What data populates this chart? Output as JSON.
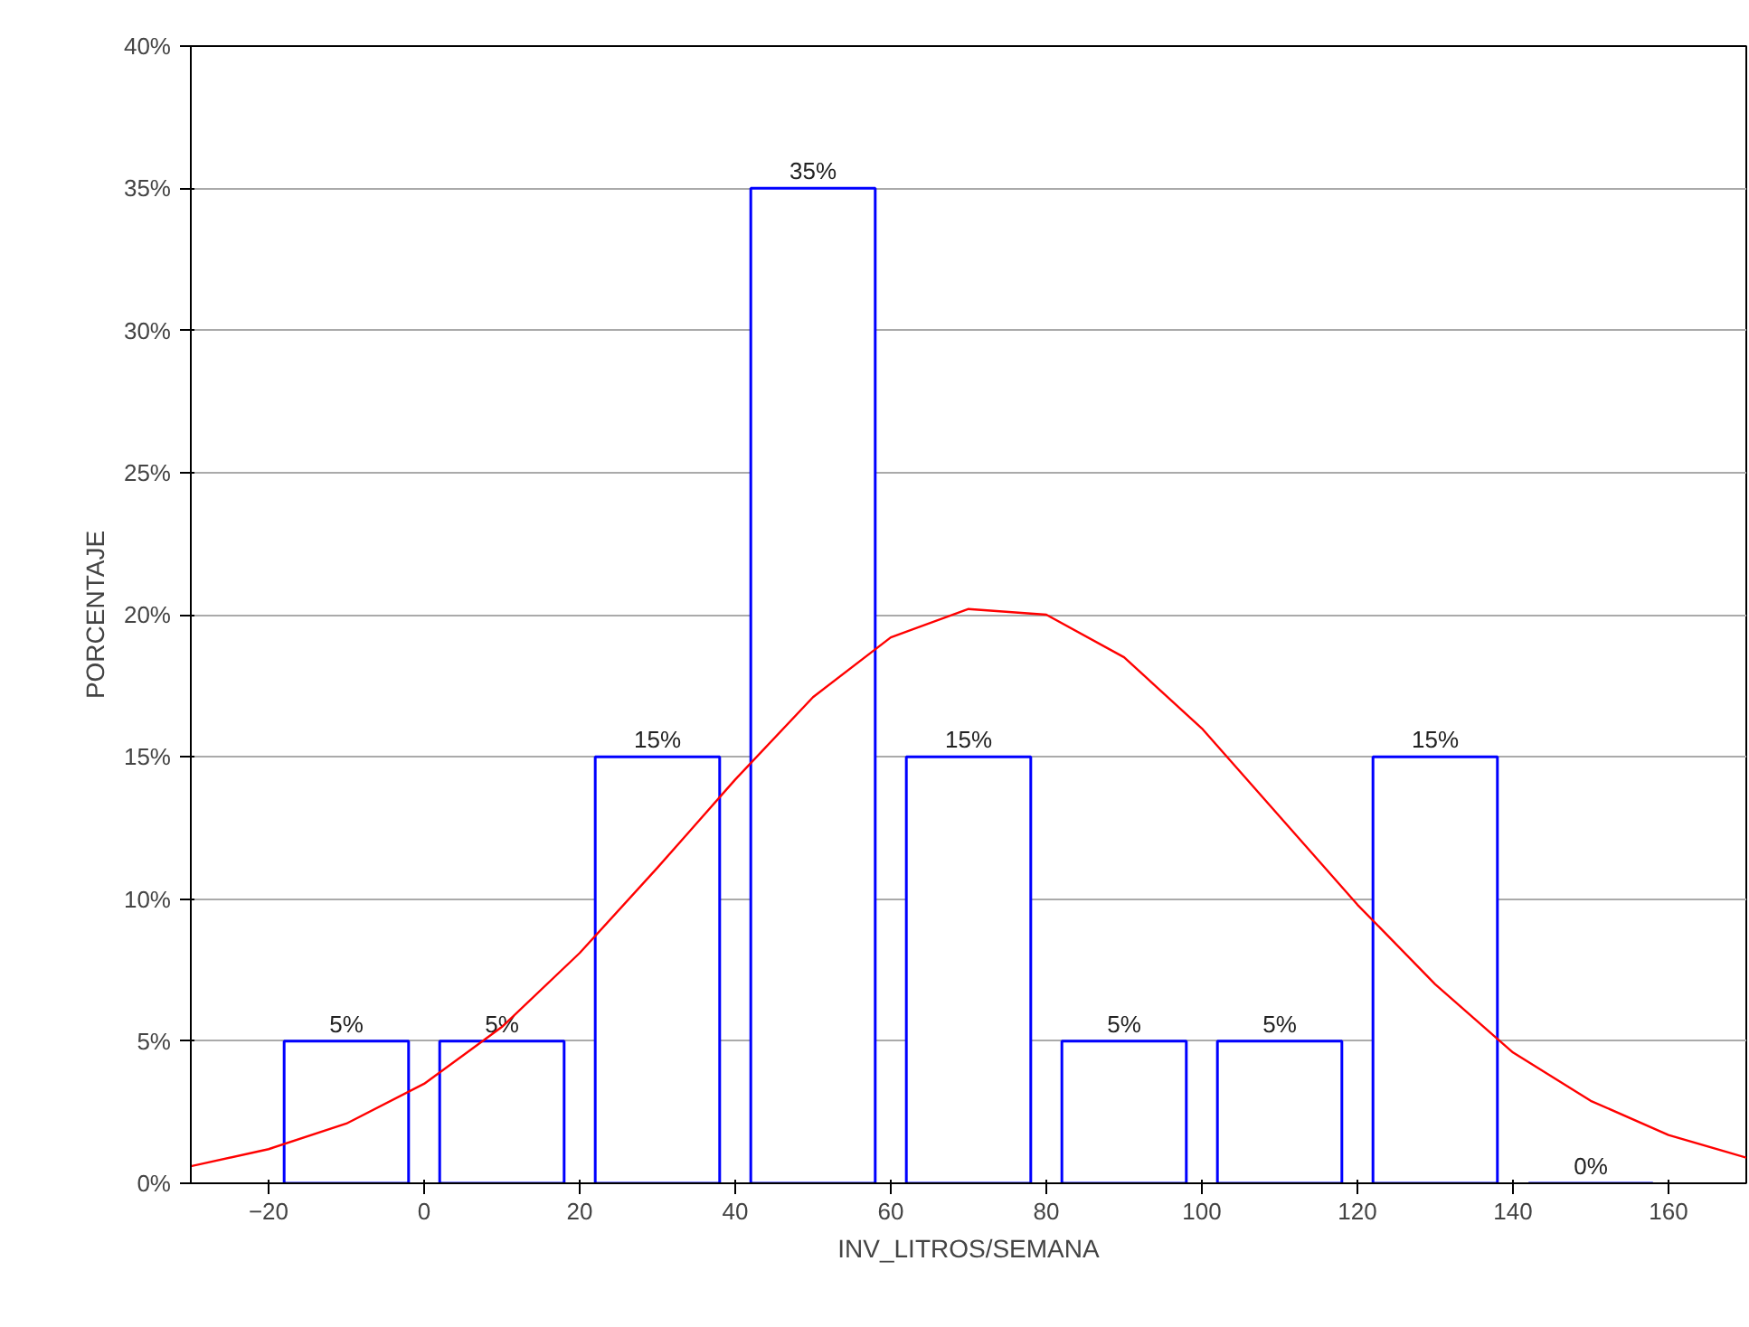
{
  "chart_data": {
    "type": "histogram",
    "xlabel": "INV_LITROS/SEMANA",
    "ylabel": "PORCENTAJE",
    "bins": [
      -20,
      0,
      20,
      40,
      60,
      80,
      100,
      120,
      140,
      160
    ],
    "values": [
      5,
      5,
      15,
      35,
      15,
      5,
      5,
      15,
      0
    ],
    "value_labels": [
      "5%",
      "5%",
      "15%",
      "35%",
      "15%",
      "5%",
      "5%",
      "15%",
      "0%"
    ],
    "color": "#0000ff",
    "series": [
      {
        "type": "line",
        "color": "#ff0000",
        "x": [
          -30,
          -20,
          -10,
          0,
          10,
          20,
          30,
          40,
          50,
          60,
          70,
          80,
          90,
          100,
          110,
          120,
          130,
          140,
          150,
          160,
          170
        ],
        "values": [
          0.6,
          1.2,
          2.1,
          3.5,
          5.5,
          8.1,
          11.1,
          14.2,
          17.1,
          19.2,
          20.2,
          20.0,
          18.5,
          16.0,
          12.9,
          9.8,
          7.0,
          4.6,
          2.9,
          1.7,
          0.9
        ]
      }
    ],
    "xlim": [
      -30,
      170
    ],
    "ylim": [
      0,
      40
    ],
    "xticks": [
      -20,
      0,
      20,
      40,
      60,
      80,
      100,
      120,
      140,
      160
    ],
    "yticks": [
      {
        "value": 0,
        "label": "0%"
      },
      {
        "value": 5,
        "label": "5%"
      },
      {
        "value": 10,
        "label": "10%"
      },
      {
        "value": 15,
        "label": "15%"
      },
      {
        "value": 20,
        "label": "20%"
      },
      {
        "value": 25,
        "label": "25%"
      },
      {
        "value": 30,
        "label": "30%"
      },
      {
        "value": 35,
        "label": "35%"
      },
      {
        "value": 40,
        "label": "40%"
      }
    ],
    "grid": "y",
    "marker": "none",
    "line_style": "solid"
  }
}
